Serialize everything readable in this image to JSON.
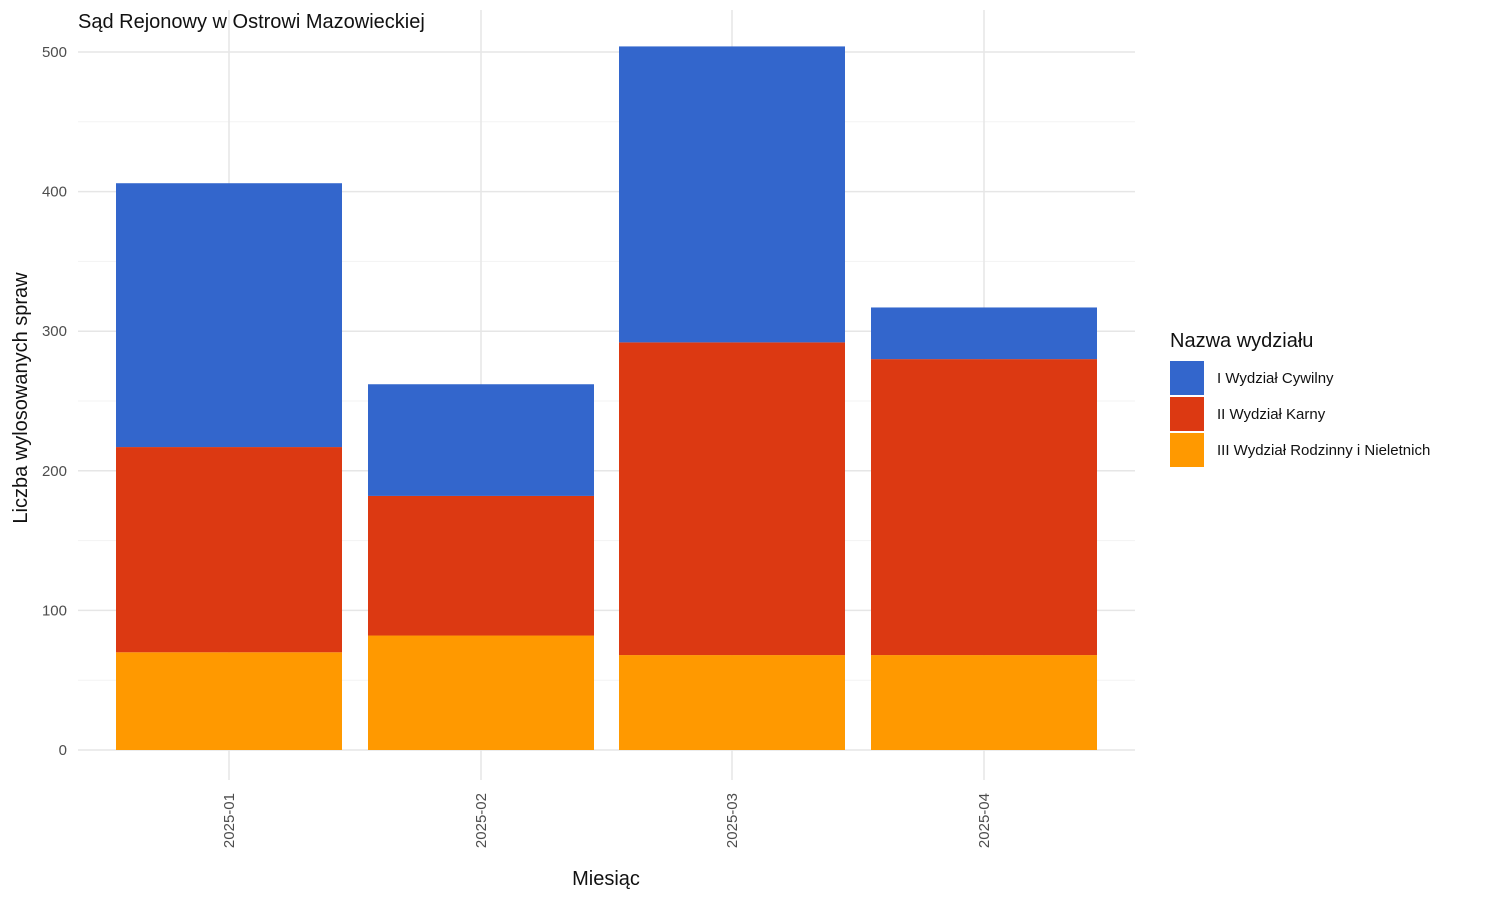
{
  "chart_data": {
    "type": "bar",
    "stacked": true,
    "title": "Sąd Rejonowy w Ostrowi Mazowieckiej",
    "xlabel": "Miesiąc",
    "ylabel": "Liczba wylosowanych spraw",
    "categories": [
      "2025-01",
      "2025-02",
      "2025-03",
      "2025-04"
    ],
    "ylim": [
      0,
      520
    ],
    "yticks": [
      0,
      100,
      200,
      300,
      400,
      500
    ],
    "grid": true,
    "legend": {
      "title": "Nazwa wydziału",
      "position": "right"
    },
    "series": [
      {
        "name": "III Wydział Rodzinny i Nieletnich",
        "color": "#FF9900",
        "values": [
          70,
          82,
          68,
          68
        ]
      },
      {
        "name": "II Wydział Karny",
        "color": "#DC3912",
        "values": [
          147,
          100,
          224,
          212
        ]
      },
      {
        "name": "I Wydział Cywilny",
        "color": "#3366CC",
        "values": [
          189,
          80,
          212,
          37
        ]
      }
    ],
    "legend_order": [
      "I Wydział Cywilny",
      "II Wydział Karny",
      "III Wydział Rodzinny i Nieletnich"
    ]
  }
}
